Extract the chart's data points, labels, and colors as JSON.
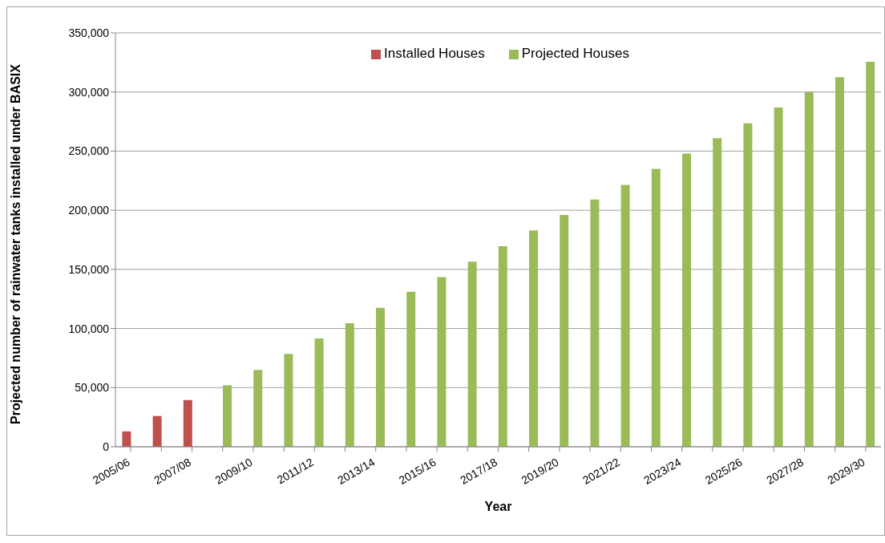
{
  "chart_data": {
    "type": "bar",
    "xlabel": "Year",
    "ylabel": "Projected number of rainwater tanks installed under BASIX",
    "categories": [
      "2005/06",
      null,
      "2007/08",
      null,
      "2009/10",
      null,
      "2011/12",
      null,
      "2013/14",
      null,
      "2015/16",
      null,
      "2017/18",
      null,
      "2019/20",
      null,
      "2021/22",
      null,
      "2023/24",
      null,
      "2025/26",
      null,
      "2027/28",
      null,
      "2029/30"
    ],
    "series": [
      {
        "name": "Installed Houses",
        "color": "#c0504d",
        "values": [
          13000,
          26000,
          39500,
          null,
          null,
          null,
          null,
          null,
          null,
          null,
          null,
          null,
          null,
          null,
          null,
          null,
          null,
          null,
          null,
          null,
          null,
          null,
          null,
          null,
          null
        ]
      },
      {
        "name": "Projected Houses",
        "color": "#9bbb59",
        "values": [
          null,
          null,
          null,
          52000,
          65000,
          78500,
          91500,
          104500,
          117500,
          131000,
          143500,
          156500,
          169500,
          183000,
          196000,
          209000,
          221500,
          235000,
          248000,
          261000,
          273500,
          287000,
          300000,
          312500,
          325500
        ]
      }
    ],
    "ylim": [
      0,
      350000
    ],
    "yticks": [
      0,
      {
        "value": 50000,
        "label": "50,000"
      },
      {
        "value": 100000,
        "label": "100,000"
      },
      {
        "value": 150000,
        "label": "150,000"
      },
      {
        "value": 200000,
        "label": "200,000"
      },
      {
        "value": 250000,
        "label": "250,000"
      },
      {
        "value": 300000,
        "label": "300,000"
      },
      {
        "value": 350000,
        "label": "350,000"
      }
    ],
    "grid": "y",
    "legend": "top"
  }
}
